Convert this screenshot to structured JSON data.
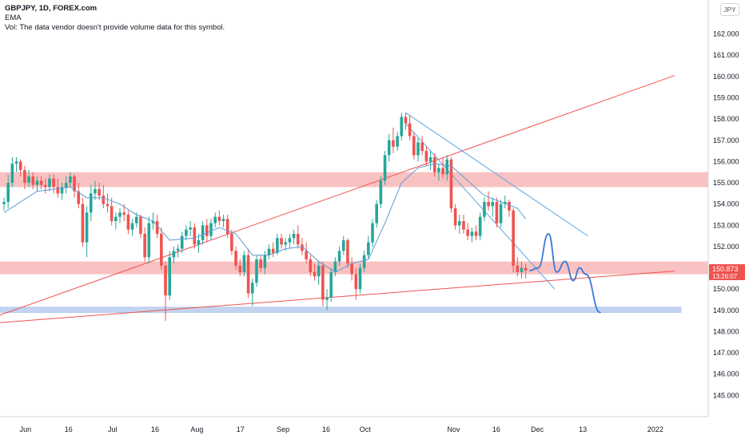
{
  "legend": {
    "symbol": "GBPJPY, 1D, FOREX.com",
    "indicator": "EMA",
    "vol_note": "Vol: The data vendor doesn't provide volume data for this symbol."
  },
  "currency_badge": "JPY",
  "price_tag": {
    "price": "150.873",
    "countdown": "13:26:07"
  },
  "colors": {
    "up": "#26a69a",
    "down": "#ef5350",
    "ema": "#5b9bd5",
    "resistance_line": "#ef5350",
    "zone_red": "rgba(244,143,143,0.55)",
    "zone_blue": "rgba(173,198,235,0.75)",
    "channel": "#5ba7e0",
    "projection": "#3d78d8"
  },
  "chart_data": {
    "type": "candlestick",
    "symbol": "GBPJPY",
    "timeframe": "1D",
    "y_axis": {
      "ticks": [
        145,
        146,
        147,
        148,
        149,
        150,
        151,
        152,
        153,
        154,
        155,
        156,
        157,
        158,
        159,
        160,
        161,
        162
      ],
      "range": [
        144.0,
        163.6
      ]
    },
    "x_axis": {
      "ticks": [
        "Jun",
        "16",
        "Jul",
        "16",
        "Aug",
        "17",
        "Sep",
        "16",
        "Oct",
        "Nov",
        "16",
        "Dec",
        "13",
        "2022"
      ]
    },
    "candles": [
      [
        154.0,
        154.3,
        153.7,
        154.1
      ],
      [
        154.1,
        155.4,
        153.8,
        155.0
      ],
      [
        155.0,
        156.2,
        154.8,
        155.9
      ],
      [
        155.9,
        156.2,
        155.5,
        156.0
      ],
      [
        156.0,
        156.1,
        155.3,
        155.6
      ],
      [
        155.6,
        155.8,
        154.7,
        155.0
      ],
      [
        155.0,
        155.6,
        154.8,
        155.3
      ],
      [
        155.3,
        155.5,
        154.7,
        154.9
      ],
      [
        154.9,
        155.3,
        154.6,
        155.1
      ],
      [
        155.1,
        155.3,
        154.7,
        154.9
      ],
      [
        154.9,
        155.2,
        154.5,
        154.8
      ],
      [
        154.8,
        155.4,
        154.6,
        155.2
      ],
      [
        155.2,
        155.4,
        154.5,
        154.8
      ],
      [
        154.8,
        155.2,
        154.3,
        154.5
      ],
      [
        154.5,
        155.0,
        154.2,
        154.8
      ],
      [
        154.8,
        155.3,
        154.5,
        155.0
      ],
      [
        155.0,
        155.5,
        154.8,
        155.3
      ],
      [
        155.3,
        155.4,
        154.3,
        154.6
      ],
      [
        154.6,
        155.0,
        153.8,
        154.0
      ],
      [
        154.0,
        154.3,
        152.0,
        152.2
      ],
      [
        152.2,
        153.9,
        151.5,
        153.6
      ],
      [
        153.6,
        154.9,
        153.2,
        154.5
      ],
      [
        154.5,
        155.1,
        154.2,
        154.7
      ],
      [
        154.7,
        155.0,
        154.2,
        154.4
      ],
      [
        154.4,
        154.9,
        153.8,
        154.0
      ],
      [
        154.0,
        154.5,
        153.6,
        153.9
      ],
      [
        153.9,
        154.3,
        153.0,
        153.2
      ],
      [
        153.2,
        153.6,
        152.8,
        153.4
      ],
      [
        153.4,
        153.8,
        153.1,
        153.6
      ],
      [
        153.6,
        154.0,
        153.2,
        153.5
      ],
      [
        153.5,
        153.7,
        152.6,
        152.8
      ],
      [
        152.8,
        153.3,
        152.5,
        153.1
      ],
      [
        153.1,
        153.6,
        152.9,
        153.4
      ],
      [
        153.4,
        153.5,
        152.4,
        152.6
      ],
      [
        152.6,
        152.9,
        151.3,
        151.5
      ],
      [
        151.5,
        153.4,
        151.2,
        153.1
      ],
      [
        153.1,
        153.6,
        152.8,
        153.2
      ],
      [
        153.2,
        153.5,
        152.4,
        152.6
      ],
      [
        152.6,
        152.9,
        150.9,
        151.1
      ],
      [
        151.1,
        151.3,
        148.5,
        149.7
      ],
      [
        149.7,
        151.8,
        149.5,
        151.5
      ],
      [
        151.5,
        152.0,
        151.2,
        151.8
      ],
      [
        151.8,
        152.1,
        151.5,
        151.9
      ],
      [
        151.9,
        152.7,
        151.7,
        152.5
      ],
      [
        152.5,
        153.0,
        152.3,
        152.8
      ],
      [
        152.8,
        153.2,
        152.5,
        152.9
      ],
      [
        152.9,
        153.1,
        151.9,
        152.1
      ],
      [
        152.1,
        152.6,
        151.7,
        152.3
      ],
      [
        152.3,
        153.2,
        152.1,
        153.0
      ],
      [
        153.0,
        153.3,
        152.2,
        152.5
      ],
      [
        152.5,
        153.3,
        152.3,
        153.1
      ],
      [
        153.1,
        153.6,
        152.9,
        153.4
      ],
      [
        153.4,
        153.7,
        153.0,
        153.2
      ],
      [
        153.2,
        153.5,
        152.9,
        153.3
      ],
      [
        153.3,
        153.5,
        152.4,
        152.6
      ],
      [
        152.6,
        152.8,
        151.6,
        151.8
      ],
      [
        151.8,
        152.0,
        150.9,
        151.1
      ],
      [
        151.1,
        151.4,
        150.6,
        150.8
      ],
      [
        150.8,
        151.8,
        150.6,
        151.6
      ],
      [
        151.6,
        151.9,
        149.6,
        149.8
      ],
      [
        149.8,
        150.5,
        149.2,
        150.3
      ],
      [
        150.3,
        151.6,
        150.1,
        151.4
      ],
      [
        151.4,
        151.6,
        150.8,
        151.0
      ],
      [
        151.0,
        151.8,
        150.7,
        151.6
      ],
      [
        151.6,
        152.1,
        151.4,
        151.9
      ],
      [
        151.9,
        152.2,
        151.5,
        151.7
      ],
      [
        151.7,
        152.6,
        151.6,
        152.4
      ],
      [
        152.4,
        152.6,
        151.9,
        152.1
      ],
      [
        152.1,
        152.4,
        151.8,
        152.2
      ],
      [
        152.2,
        152.6,
        151.9,
        152.4
      ],
      [
        152.4,
        152.8,
        152.1,
        152.6
      ],
      [
        152.6,
        153.0,
        151.9,
        152.1
      ],
      [
        152.1,
        152.4,
        151.6,
        151.8
      ],
      [
        151.8,
        152.2,
        151.2,
        151.4
      ],
      [
        151.4,
        151.6,
        150.6,
        150.8
      ],
      [
        150.8,
        151.2,
        150.4,
        150.6
      ],
      [
        150.6,
        151.3,
        150.2,
        151.1
      ],
      [
        151.1,
        151.3,
        149.2,
        149.5
      ],
      [
        149.5,
        150.0,
        149.0,
        149.6
      ],
      [
        149.6,
        151.0,
        149.4,
        150.8
      ],
      [
        150.8,
        151.5,
        150.6,
        151.3
      ],
      [
        151.3,
        152.0,
        151.1,
        151.8
      ],
      [
        151.8,
        152.5,
        151.6,
        152.3
      ],
      [
        152.3,
        152.4,
        151.0,
        151.2
      ],
      [
        151.2,
        151.5,
        150.4,
        150.7
      ],
      [
        150.7,
        151.0,
        149.5,
        150.0
      ],
      [
        150.0,
        151.2,
        149.8,
        151.0
      ],
      [
        151.0,
        151.8,
        150.8,
        151.6
      ],
      [
        151.6,
        152.5,
        151.4,
        152.2
      ],
      [
        152.2,
        153.3,
        152.0,
        153.1
      ],
      [
        153.1,
        154.2,
        152.9,
        154.0
      ],
      [
        154.0,
        155.3,
        153.8,
        155.1
      ],
      [
        155.1,
        156.5,
        154.9,
        156.3
      ],
      [
        156.3,
        157.3,
        156.0,
        157.0
      ],
      [
        157.0,
        157.6,
        156.4,
        156.7
      ],
      [
        156.7,
        157.4,
        156.5,
        157.2
      ],
      [
        157.2,
        158.3,
        157.0,
        158.1
      ],
      [
        158.1,
        158.3,
        157.5,
        157.8
      ],
      [
        157.8,
        158.2,
        157.0,
        157.2
      ],
      [
        157.2,
        157.4,
        156.1,
        156.3
      ],
      [
        156.3,
        157.1,
        156.0,
        156.9
      ],
      [
        156.9,
        157.2,
        156.3,
        156.5
      ],
      [
        156.5,
        156.7,
        155.8,
        156.0
      ],
      [
        156.0,
        156.5,
        155.6,
        156.2
      ],
      [
        156.2,
        156.4,
        155.3,
        155.5
      ],
      [
        155.5,
        155.9,
        155.1,
        155.7
      ],
      [
        155.7,
        156.2,
        155.2,
        155.4
      ],
      [
        155.4,
        156.3,
        155.1,
        156.1
      ],
      [
        156.1,
        156.2,
        153.6,
        153.8
      ],
      [
        153.8,
        154.0,
        152.8,
        153.0
      ],
      [
        153.0,
        153.5,
        152.6,
        153.2
      ],
      [
        153.2,
        153.5,
        152.6,
        152.8
      ],
      [
        152.8,
        153.1,
        152.3,
        152.5
      ],
      [
        152.5,
        152.9,
        152.2,
        152.7
      ],
      [
        152.7,
        153.0,
        152.3,
        152.5
      ],
      [
        152.5,
        153.6,
        152.3,
        153.4
      ],
      [
        153.4,
        154.3,
        153.2,
        154.1
      ],
      [
        154.1,
        154.6,
        153.7,
        153.9
      ],
      [
        153.9,
        154.3,
        153.4,
        154.1
      ],
      [
        154.1,
        154.3,
        152.9,
        153.1
      ],
      [
        153.1,
        154.2,
        152.9,
        154.0
      ],
      [
        154.0,
        154.4,
        153.8,
        154.1
      ],
      [
        154.1,
        154.2,
        153.4,
        153.7
      ],
      [
        153.7,
        153.8,
        150.8,
        151.1
      ],
      [
        151.1,
        151.5,
        150.6,
        150.8
      ],
      [
        150.8,
        151.3,
        150.5,
        151.0
      ],
      [
        151.0,
        151.2,
        150.5,
        150.873
      ]
    ],
    "ema": {
      "name": "EMA",
      "values": [
        [
          0,
          153.6
        ],
        [
          8,
          154.6
        ],
        [
          16,
          154.8
        ],
        [
          20,
          154.3
        ],
        [
          24,
          154.3
        ],
        [
          28,
          154.0
        ],
        [
          32,
          153.5
        ],
        [
          36,
          153.2
        ],
        [
          40,
          152.3
        ],
        [
          46,
          152.4
        ],
        [
          52,
          152.9
        ],
        [
          56,
          152.6
        ],
        [
          60,
          151.6
        ],
        [
          64,
          151.6
        ],
        [
          68,
          151.9
        ],
        [
          72,
          152.0
        ],
        [
          76,
          151.3
        ],
        [
          80,
          150.8
        ],
        [
          84,
          151.2
        ],
        [
          88,
          151.4
        ],
        [
          92,
          153.1
        ],
        [
          96,
          155.0
        ],
        [
          100,
          155.7
        ],
        [
          104,
          155.9
        ],
        [
          108,
          155.8
        ],
        [
          112,
          155.1
        ],
        [
          116,
          154.4
        ],
        [
          120,
          154.1
        ],
        [
          124,
          153.8
        ],
        [
          126,
          153.3
        ]
      ]
    },
    "drawings": {
      "resistance_line": [
        [
          148.3,
          -7.9
        ],
        [
          160.05,
          162
        ]
      ],
      "support_line": [
        [
          148.32,
          -7.9
        ],
        [
          150.85,
          162
        ]
      ],
      "red_zones": [
        [
          154.8,
          155.5
        ],
        [
          150.7,
          151.3
        ]
      ],
      "blue_zone": [
        148.9,
        149.15
      ],
      "channel_upper": [
        [
          158.3,
          97
        ],
        [
          152.5,
          141
        ]
      ],
      "channel_lower": [
        [
          157.8,
          97
        ],
        [
          150.0,
          133
        ]
      ],
      "projection": [
        [
          150.873,
          127
        ],
        [
          151.0,
          129
        ],
        [
          152.6,
          131.5
        ],
        [
          150.8,
          133.5
        ],
        [
          151.3,
          135.5
        ],
        [
          150.4,
          137.5
        ],
        [
          151.0,
          139
        ],
        [
          150.7,
          140.5
        ],
        [
          148.9,
          144
        ]
      ]
    }
  }
}
